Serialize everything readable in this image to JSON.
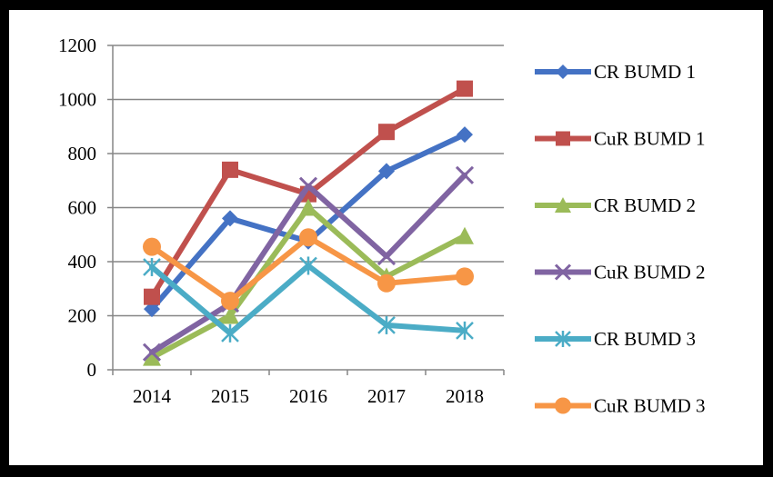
{
  "chart_data": {
    "type": "line",
    "categories": [
      "2014",
      "2015",
      "2016",
      "2017",
      "2018"
    ],
    "ylim": [
      0,
      1200
    ],
    "yticks": [
      0,
      200,
      400,
      600,
      800,
      1000,
      1200
    ],
    "grid": "horizontal",
    "legend_position": "right",
    "series": [
      {
        "name": "CR BUMD 1",
        "color": "#4472C4",
        "marker": "diamond",
        "values": [
          225,
          560,
          475,
          735,
          870
        ]
      },
      {
        "name": "CuR BUMD 1",
        "color": "#C0504D",
        "marker": "square",
        "values": [
          270,
          740,
          650,
          880,
          1040
        ]
      },
      {
        "name": "CR BUMD 2",
        "color": "#9BBB59",
        "marker": "triangle",
        "values": [
          45,
          200,
          600,
          345,
          495
        ]
      },
      {
        "name": "CuR BUMD 2",
        "color": "#8064A2",
        "marker": "x",
        "values": [
          65,
          245,
          680,
          420,
          720
        ]
      },
      {
        "name": "CR BUMD 3",
        "color": "#4BACC6",
        "marker": "star",
        "values": [
          380,
          135,
          385,
          165,
          145
        ]
      },
      {
        "name": "CuR BUMD 3",
        "color": "#F79646",
        "marker": "circle",
        "values": [
          455,
          255,
          490,
          320,
          345
        ]
      }
    ]
  }
}
